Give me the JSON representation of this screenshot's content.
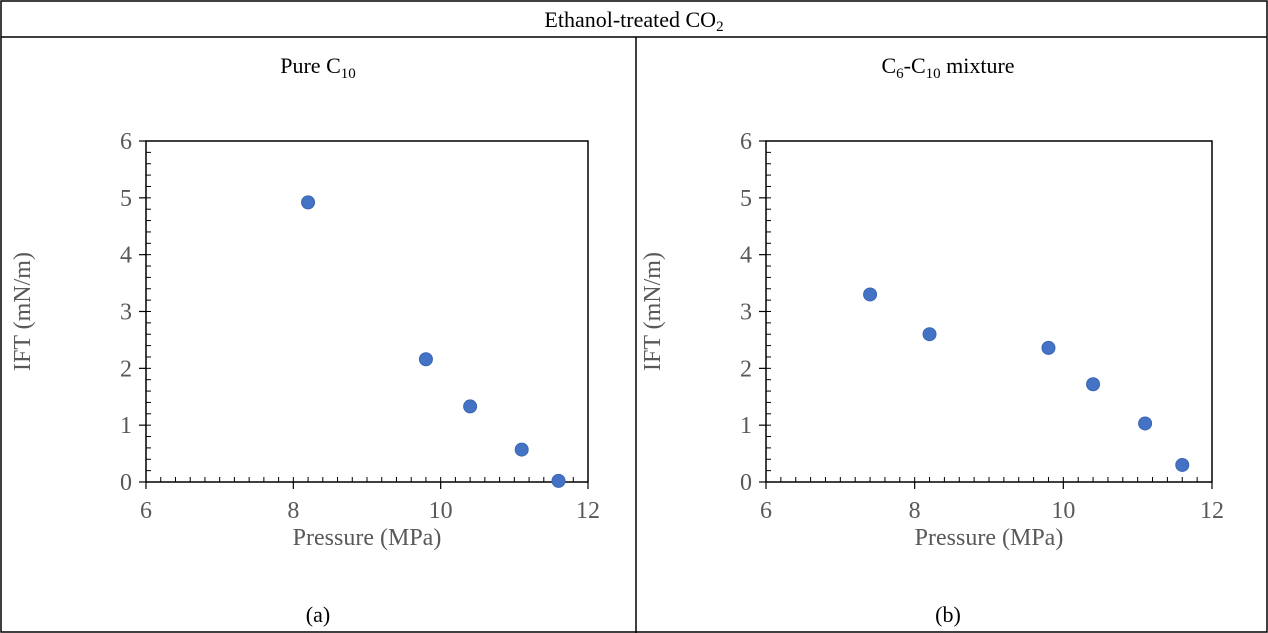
{
  "header": {
    "title_main": "Ethanol-treated CO",
    "title_sub": "2"
  },
  "panels": [
    {
      "title": {
        "main": "Pure C",
        "sub": "10",
        "rest": ""
      },
      "caption": "(a)"
    },
    {
      "title": {
        "main": "C",
        "sub": "6",
        "mid": "-C",
        "sub2": "10",
        "rest": " mixture"
      },
      "caption": "(b)"
    }
  ],
  "chart_data": [
    {
      "type": "scatter",
      "title": "",
      "xlabel": "Pressure (MPa)",
      "ylabel": "IFT (mN/m)",
      "xlim": [
        6,
        12
      ],
      "ylim": [
        0,
        6
      ],
      "xticks": [
        6,
        8,
        10,
        12
      ],
      "yticks": [
        0,
        1,
        2,
        3,
        4,
        5,
        6
      ],
      "marker_color": "#4472C4",
      "grid": false,
      "points": [
        {
          "x": 8.2,
          "y": 4.92
        },
        {
          "x": 9.8,
          "y": 2.16
        },
        {
          "x": 10.4,
          "y": 1.33
        },
        {
          "x": 11.1,
          "y": 0.57
        },
        {
          "x": 11.6,
          "y": 0.02
        }
      ]
    },
    {
      "type": "scatter",
      "title": "",
      "xlabel": "Pressure (MPa)",
      "ylabel": "IFT (mN/m)",
      "xlim": [
        6,
        12
      ],
      "ylim": [
        0,
        6
      ],
      "xticks": [
        6,
        8,
        10,
        12
      ],
      "yticks": [
        0,
        1,
        2,
        3,
        4,
        5,
        6
      ],
      "marker_color": "#4472C4",
      "grid": false,
      "points": [
        {
          "x": 7.4,
          "y": 3.3
        },
        {
          "x": 8.2,
          "y": 2.6
        },
        {
          "x": 9.8,
          "y": 2.36
        },
        {
          "x": 10.4,
          "y": 1.72
        },
        {
          "x": 11.1,
          "y": 1.03
        },
        {
          "x": 11.6,
          "y": 0.3
        }
      ]
    }
  ]
}
